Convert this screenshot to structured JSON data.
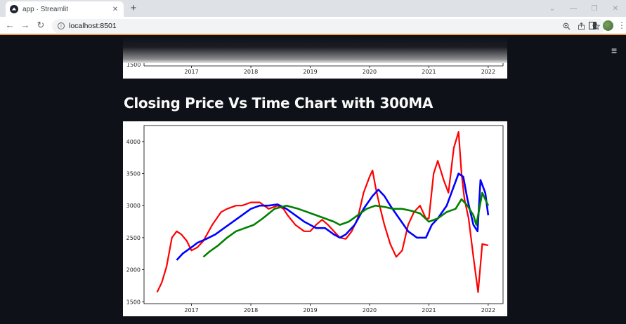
{
  "browser": {
    "tab_title": "app · Streamlit",
    "tab_close": "✕",
    "new_tab": "+",
    "url": "localhost:8501",
    "window_controls": [
      "⌄",
      "—",
      "❐",
      "✕"
    ]
  },
  "page": {
    "menu_icon": "≡",
    "heading": "Closing Price Vs Time Chart with 300MA",
    "top_chart_xticks": [
      "2017",
      "2018",
      "2019",
      "2020",
      "2021",
      "2022"
    ],
    "top_chart_ytick": "1500"
  },
  "colors": {
    "background": "#0e1117",
    "price": "#ff0000",
    "ma100": "#0000ff",
    "ma300": "#008000"
  },
  "chart_data": {
    "type": "line",
    "title": "",
    "xlabel": "",
    "ylabel": "",
    "x_ticks": [
      "2017",
      "2018",
      "2019",
      "2020",
      "2021",
      "2022"
    ],
    "y_ticks": [
      1500,
      2000,
      2500,
      3000,
      3500,
      4000
    ],
    "xlim": [
      2016.2,
      2022.25
    ],
    "ylim": [
      1470,
      4250
    ],
    "series": [
      {
        "color": "#ff0000",
        "x": [
          2016.42,
          2016.5,
          2016.58,
          2016.67,
          2016.75,
          2016.83,
          2016.92,
          2017.0,
          2017.1,
          2017.2,
          2017.35,
          2017.5,
          2017.6,
          2017.75,
          2017.85,
          2018.0,
          2018.15,
          2018.3,
          2018.45,
          2018.55,
          2018.62,
          2018.75,
          2018.9,
          2019.0,
          2019.1,
          2019.2,
          2019.3,
          2019.4,
          2019.5,
          2019.6,
          2019.7,
          2019.8,
          2019.9,
          2020.0,
          2020.05,
          2020.1,
          2020.17,
          2020.25,
          2020.35,
          2020.45,
          2020.55,
          2020.65,
          2020.75,
          2020.85,
          2020.95,
          2021.0,
          2021.08,
          2021.15,
          2021.25,
          2021.33,
          2021.42,
          2021.5,
          2021.55,
          2021.6,
          2021.67,
          2021.75,
          2021.83,
          2021.9,
          2022.0
        ],
        "y": [
          1650,
          1800,
          2050,
          2500,
          2600,
          2550,
          2450,
          2300,
          2350,
          2450,
          2700,
          2900,
          2950,
          3000,
          3000,
          3050,
          3050,
          2950,
          3000,
          2950,
          2850,
          2700,
          2600,
          2600,
          2700,
          2780,
          2700,
          2600,
          2500,
          2480,
          2600,
          2800,
          3200,
          3450,
          3550,
          3300,
          3000,
          2700,
          2400,
          2200,
          2300,
          2700,
          2900,
          3000,
          2800,
          2800,
          3500,
          3700,
          3400,
          3200,
          3900,
          4150,
          3500,
          3100,
          2800,
          2200,
          1650,
          2400,
          2380
        ]
      },
      {
        "color": "#0000ff",
        "x": [
          2016.75,
          2016.85,
          2017.0,
          2017.1,
          2017.25,
          2017.4,
          2017.55,
          2017.7,
          2017.85,
          2018.0,
          2018.15,
          2018.3,
          2018.45,
          2018.6,
          2018.75,
          2018.9,
          2019.0,
          2019.1,
          2019.25,
          2019.4,
          2019.5,
          2019.6,
          2019.75,
          2019.9,
          2020.05,
          2020.15,
          2020.25,
          2020.35,
          2020.5,
          2020.65,
          2020.8,
          2020.95,
          2021.05,
          2021.15,
          2021.3,
          2021.4,
          2021.5,
          2021.58,
          2021.65,
          2021.75,
          2021.82,
          2021.87,
          2021.95,
          2022.0
        ],
        "y": [
          2150,
          2250,
          2350,
          2420,
          2480,
          2550,
          2650,
          2750,
          2850,
          2950,
          3000,
          3000,
          3020,
          2950,
          2850,
          2750,
          2700,
          2650,
          2650,
          2550,
          2500,
          2550,
          2700,
          2950,
          3150,
          3250,
          3150,
          3000,
          2800,
          2600,
          2500,
          2500,
          2700,
          2800,
          3000,
          3250,
          3500,
          3450,
          3100,
          2700,
          2600,
          3400,
          3200,
          2850
        ]
      },
      {
        "color": "#008000",
        "x": [
          2017.2,
          2017.3,
          2017.45,
          2017.6,
          2017.75,
          2017.9,
          2018.05,
          2018.2,
          2018.4,
          2018.6,
          2018.8,
          2018.95,
          2019.1,
          2019.25,
          2019.4,
          2019.5,
          2019.65,
          2019.8,
          2019.95,
          2020.1,
          2020.25,
          2020.4,
          2020.55,
          2020.7,
          2020.85,
          2021.0,
          2021.15,
          2021.3,
          2021.45,
          2021.55,
          2021.65,
          2021.75,
          2021.8,
          2021.9,
          2022.0
        ],
        "y": [
          2200,
          2280,
          2380,
          2500,
          2600,
          2650,
          2700,
          2800,
          2950,
          3000,
          2950,
          2900,
          2850,
          2800,
          2750,
          2700,
          2750,
          2850,
          2950,
          3000,
          2980,
          2950,
          2950,
          2920,
          2880,
          2750,
          2800,
          2900,
          2950,
          3100,
          3000,
          2850,
          2700,
          3200,
          3000
        ]
      }
    ]
  }
}
